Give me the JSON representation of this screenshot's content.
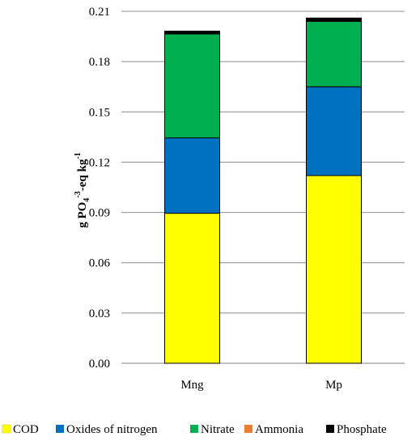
{
  "chart_data": {
    "type": "bar",
    "stacked": true,
    "categories": [
      "Mng",
      "Mp"
    ],
    "series": [
      {
        "name": "COD",
        "color": "#ffff00",
        "values": [
          0.0895,
          0.112
        ]
      },
      {
        "name": "Oxides of nitrogen",
        "color": "#0070c0",
        "values": [
          0.045,
          0.053
        ]
      },
      {
        "name": "Nitrate",
        "color": "#00b050",
        "values": [
          0.062,
          0.039
        ]
      },
      {
        "name": "Ammonia",
        "color": "#ed7d31",
        "values": [
          0.0005,
          0.0005
        ]
      },
      {
        "name": "Phosphate",
        "color": "#000000",
        "values": [
          0.0012,
          0.0015
        ]
      }
    ],
    "ylabel_main": "g PO",
    "ylabel_sub": "4",
    "ylabel_sup": "-3",
    "ylabel_tail": "-eq kg",
    "ylabel_tail_sup": "-1",
    "ylim": [
      0,
      0.21
    ],
    "yticks": [
      "0.00",
      "0.03",
      "0.06",
      "0.09",
      "0.12",
      "0.15",
      "0.18",
      "0.21"
    ],
    "grid": true,
    "legend": "bottom"
  }
}
